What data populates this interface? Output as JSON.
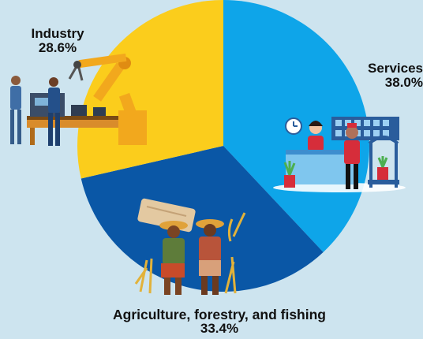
{
  "chart_data": {
    "type": "pie",
    "title": "",
    "slices": [
      {
        "label": "Services",
        "value": 38.0,
        "display": "38.0%",
        "color": "#0ea5e9"
      },
      {
        "label": "Agriculture, forestry, and fishing",
        "value": 33.4,
        "display": "33.4%",
        "color": "#0a57a6"
      },
      {
        "label": "Industry",
        "value": 28.6,
        "display": "28.6%",
        "color": "#fbcd1c"
      }
    ],
    "start": "top (12 o'clock), clockwise",
    "illustrations": [
      "factory-workers-with-robot-arm",
      "hotel-reception-desk",
      "farm-workers"
    ]
  },
  "colors": {
    "background": "#cde4ef",
    "label_text": "#111111"
  }
}
